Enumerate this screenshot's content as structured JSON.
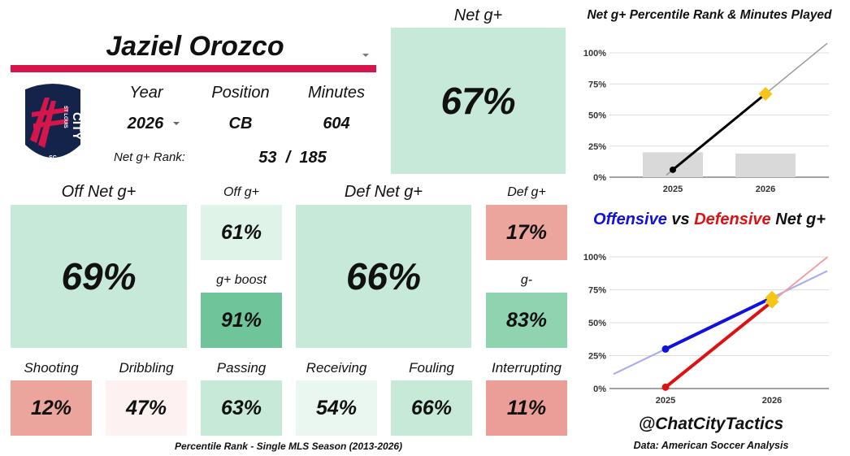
{
  "player": {
    "name": "Jaziel Orozco"
  },
  "info": {
    "year_label": "Year",
    "year_value": "2026",
    "position_label": "Position",
    "position_value": "CB",
    "minutes_label": "Minutes",
    "minutes_value": "604",
    "rank_label": "Net g+ Rank:",
    "rank_value": "53  /  185"
  },
  "club": {
    "badge_text": "ST LOUIS",
    "badge_city": "CITY",
    "badge_sc": "SC"
  },
  "net": {
    "label": "Net g+",
    "value": "67%"
  },
  "offense": {
    "label": "Off Net g+",
    "value": "69%",
    "off_label": "Off g+",
    "off_value": "61%",
    "boost_label": "g+ boost",
    "boost_value": "91%"
  },
  "defense": {
    "label": "Def Net g+",
    "value": "66%",
    "def_label": "Def g+",
    "def_value": "17%",
    "gminus_label": "g-",
    "gminus_value": "83%"
  },
  "actions": [
    {
      "label": "Shooting",
      "value": "12%",
      "color": "#eba59d"
    },
    {
      "label": "Dribbling",
      "value": "47%",
      "color": "#fdf2f1"
    },
    {
      "label": "Passing",
      "value": "63%",
      "color": "#c6e9d8"
    },
    {
      "label": "Receiving",
      "value": "54%",
      "color": "#eaf6f0"
    },
    {
      "label": "Fouling",
      "value": "66%",
      "color": "#c6e9d8"
    },
    {
      "label": "Interrupting",
      "value": "11%",
      "color": "#eb9e97"
    }
  ],
  "colors": {
    "green_light": "#c7e9d9",
    "green_pale": "#dff3e9",
    "green_mid": "#8fd3b0",
    "red_light": "#eba59d",
    "brand_red": "#d6164a",
    "brand_navy": "#13234a"
  },
  "footer": {
    "caption": "Percentile Rank - Single MLS Season (2013-2026)",
    "handle": "@ChatCityTactics",
    "source": "Data: American Soccer Analysis"
  },
  "chart_data": [
    {
      "type": "bar",
      "title": "Net g+ Percentile Rank & Minutes Played",
      "categories": [
        "2025",
        "2026"
      ],
      "ylim": [
        0,
        100
      ],
      "yticks": [
        "0%",
        "25%",
        "50%",
        "75%",
        "100%"
      ],
      "grid": true,
      "bars_relative": [
        20,
        19
      ],
      "series": [
        {
          "values": [
            6,
            67
          ],
          "color": "#000000"
        }
      ],
      "trend_color": "#999999"
    },
    {
      "type": "line",
      "title_parts": [
        "Offensive",
        " vs ",
        "Defensive",
        " Net g+"
      ],
      "title_colors": [
        "#1010e0",
        "#111111",
        "#e01010",
        "#111111"
      ],
      "categories": [
        "2025",
        "2026"
      ],
      "ylim": [
        0,
        100
      ],
      "yticks": [
        "0%",
        "25%",
        "50%",
        "75%",
        "100%"
      ],
      "grid": true,
      "series": [
        {
          "values": [
            30,
            69
          ],
          "color": "#1010e0"
        },
        {
          "values": [
            1,
            66
          ],
          "color": "#e01010"
        }
      ],
      "trend_colors": [
        "#a8a8ee",
        "#f0a0a0"
      ],
      "marker_color": "#f5c518"
    }
  ]
}
